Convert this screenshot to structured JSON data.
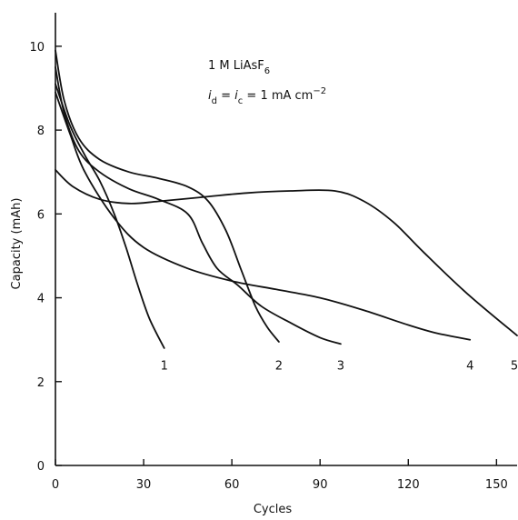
{
  "chart_data": {
    "type": "line",
    "xlabel": "Cycles",
    "ylabel": "Capacity (mAh)",
    "xlim": [
      0,
      157
    ],
    "ylim": [
      0,
      10.8
    ],
    "x_ticks": [
      0,
      30,
      60,
      90,
      120,
      150
    ],
    "y_ticks": [
      0,
      2,
      4,
      6,
      8,
      10
    ],
    "grid": false,
    "annotation": {
      "line1": {
        "prefix": "1 M LiAsF",
        "sub": "6"
      },
      "line2": {
        "i": "i",
        "d": "d",
        "eq1": " = ",
        "c": "c",
        "rest": " = 1 mA  cm",
        "sup": "−2"
      }
    },
    "series": [
      {
        "name": "1",
        "x": [
          0,
          5,
          10,
          15,
          20,
          24,
          28,
          32,
          37
        ],
        "y": [
          9.1,
          8.1,
          7.4,
          6.8,
          6.0,
          5.2,
          4.3,
          3.5,
          2.8
        ],
        "label_at": [
          37,
          2.4
        ]
      },
      {
        "name": "2",
        "x": [
          0,
          3,
          8,
          15,
          25,
          35,
          45,
          52,
          58,
          63,
          68,
          72,
          76
        ],
        "y": [
          9.9,
          8.7,
          7.8,
          7.3,
          7.0,
          6.85,
          6.65,
          6.3,
          5.6,
          4.7,
          3.8,
          3.3,
          2.95
        ],
        "label_at": [
          76,
          2.4
        ]
      },
      {
        "name": "3",
        "x": [
          0,
          3,
          8,
          15,
          25,
          35,
          45,
          50,
          55,
          62,
          70,
          80,
          90,
          97
        ],
        "y": [
          9.5,
          8.4,
          7.5,
          7.0,
          6.6,
          6.35,
          6.0,
          5.3,
          4.7,
          4.3,
          3.8,
          3.4,
          3.05,
          2.9
        ],
        "label_at": [
          97,
          2.4
        ]
      },
      {
        "name": "4",
        "x": [
          0,
          5,
          10,
          20,
          30,
          45,
          60,
          75,
          90,
          105,
          120,
          130,
          141
        ],
        "y": [
          8.9,
          7.9,
          7.0,
          5.9,
          5.2,
          4.7,
          4.4,
          4.2,
          4.0,
          3.7,
          3.35,
          3.15,
          3.0
        ],
        "label_at": [
          141,
          2.4
        ]
      },
      {
        "name": "5",
        "x": [
          0,
          6,
          15,
          25,
          35,
          50,
          65,
          80,
          95,
          105,
          115,
          125,
          140,
          157
        ],
        "y": [
          7.05,
          6.65,
          6.35,
          6.25,
          6.3,
          6.4,
          6.5,
          6.55,
          6.55,
          6.3,
          5.8,
          5.1,
          4.1,
          3.1
        ],
        "label_at": [
          157,
          2.4
        ]
      }
    ]
  }
}
